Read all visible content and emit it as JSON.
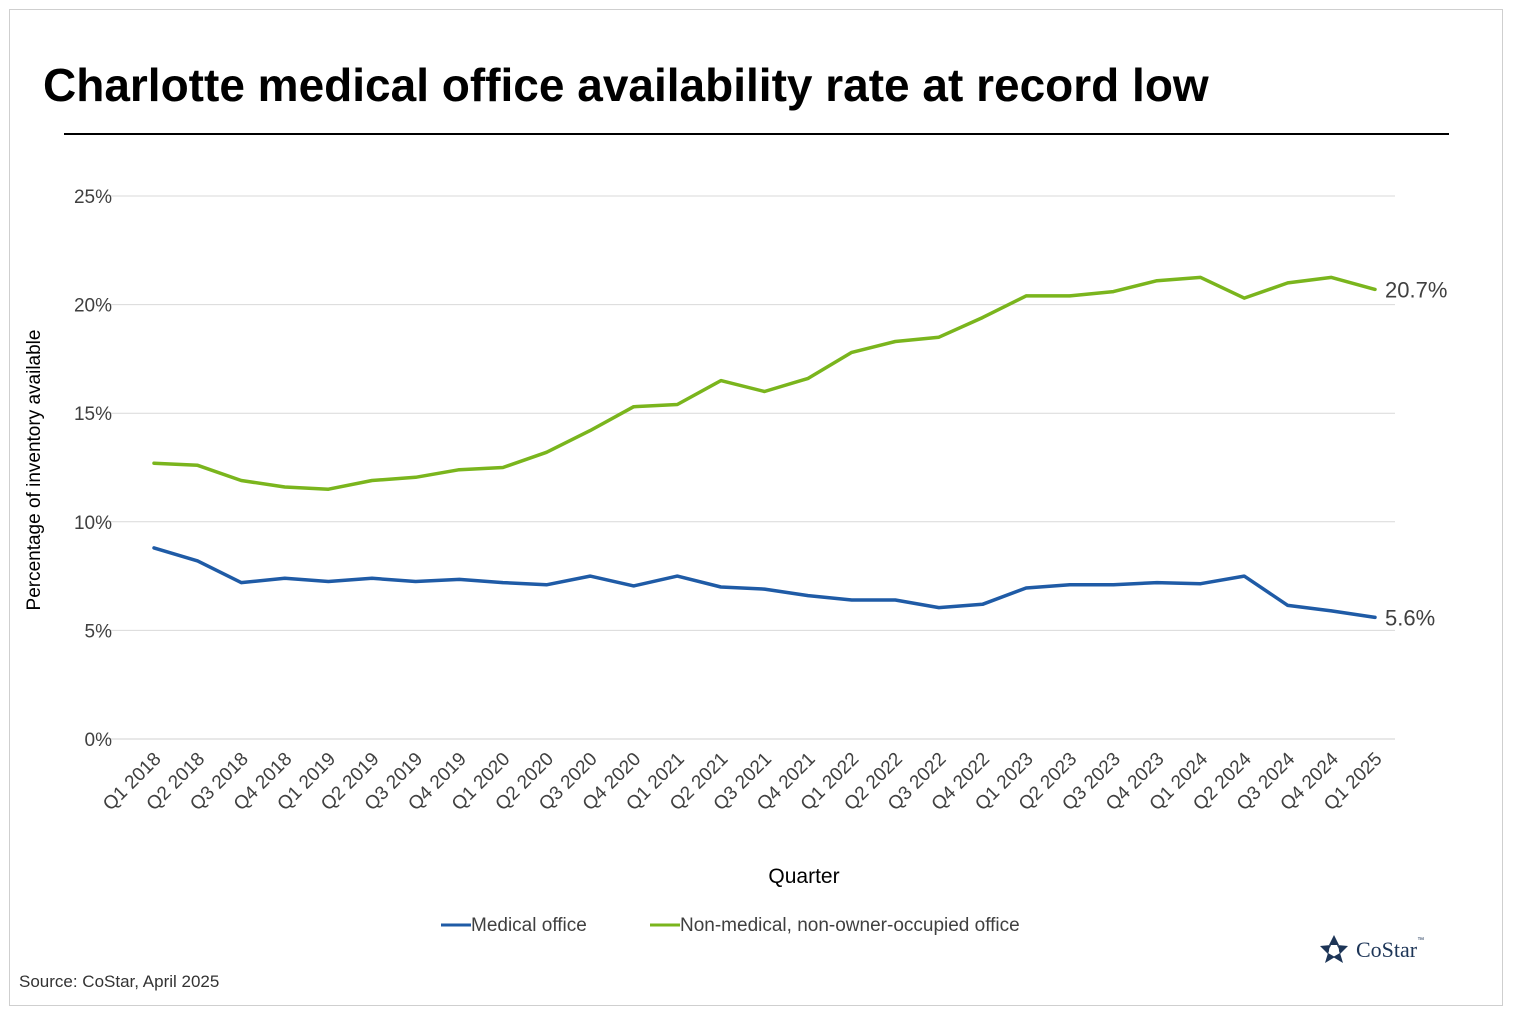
{
  "title": "Charlotte medical office availability rate at record low",
  "source": "Source: CoStar, April 2025",
  "logo": {
    "text": "CoStar",
    "tm": "™"
  },
  "colors": {
    "medical": "#1f5ba6",
    "nonmedical": "#7ab51d",
    "grid": "#d9d9d9",
    "text": "#404040"
  },
  "chart_data": {
    "type": "line",
    "ylabel": "Percentage of inventory available",
    "xlabel": "Quarter",
    "ylim": [
      0,
      25
    ],
    "yticks": [
      0,
      5,
      10,
      15,
      20,
      25
    ],
    "ytick_labels": [
      "0%",
      "5%",
      "10%",
      "15%",
      "20%",
      "25%"
    ],
    "grid": "horizontal",
    "legend_position": "bottom",
    "categories": [
      "Q1 2018",
      "Q2 2018",
      "Q3 2018",
      "Q4 2018",
      "Q1 2019",
      "Q2 2019",
      "Q3 2019",
      "Q4 2019",
      "Q1 2020",
      "Q2 2020",
      "Q3 2020",
      "Q4 2020",
      "Q1 2021",
      "Q2 2021",
      "Q3 2021",
      "Q4 2021",
      "Q1 2022",
      "Q2 2022",
      "Q3 2022",
      "Q4 2022",
      "Q1 2023",
      "Q2 2023",
      "Q3 2023",
      "Q4 2023",
      "Q1 2024",
      "Q2 2024",
      "Q3 2024",
      "Q4 2024",
      "Q1 2025"
    ],
    "series": [
      {
        "name": "Medical office",
        "color": "#1f5ba6",
        "values": [
          8.8,
          8.2,
          7.2,
          7.4,
          7.25,
          7.4,
          7.25,
          7.35,
          7.2,
          7.1,
          7.5,
          7.05,
          7.5,
          7.0,
          6.9,
          6.6,
          6.4,
          6.4,
          6.05,
          6.2,
          6.95,
          7.1,
          7.1,
          7.2,
          7.15,
          7.5,
          6.15,
          5.9,
          5.6
        ],
        "end_label": "5.6%"
      },
      {
        "name": "Non-medical, non-owner-occupied office",
        "color": "#7ab51d",
        "values": [
          12.7,
          12.6,
          11.9,
          11.6,
          11.5,
          11.9,
          12.05,
          12.4,
          12.5,
          13.2,
          14.2,
          15.3,
          15.4,
          16.5,
          16.0,
          16.6,
          17.8,
          18.3,
          18.5,
          19.4,
          20.4,
          20.4,
          20.6,
          21.1,
          21.25,
          20.3,
          21.0,
          21.25,
          20.7
        ],
        "end_label": "20.7%"
      }
    ]
  }
}
